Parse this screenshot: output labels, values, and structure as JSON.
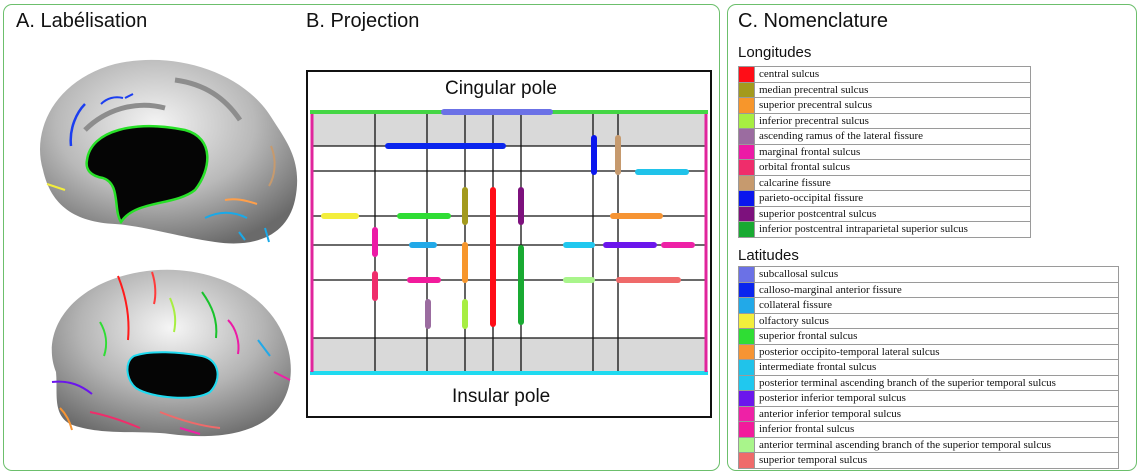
{
  "panels": {
    "a_title": "A. Labélisation",
    "b_title": "B. Projection",
    "c_title": "C. Nomenclature"
  },
  "projection": {
    "top_pole": "Cingular pole",
    "bottom_pole": "Insular pole"
  },
  "nomenclature": {
    "longitudes_heading": "Longitudes",
    "latitudes_heading": "Latitudes",
    "longitudes": [
      {
        "label": "central sulcus",
        "color": "#ff0d17"
      },
      {
        "label": "median precentral sulcus",
        "color": "#a39a1d"
      },
      {
        "label": "superior precentral sulcus",
        "color": "#f7962b"
      },
      {
        "label": "inferior precentral sulcus",
        "color": "#a7ee42"
      },
      {
        "label": "ascending ramus of the lateral fissure",
        "color": "#9b6ca0"
      },
      {
        "label": "marginal frontal sulcus",
        "color": "#ec1aa6"
      },
      {
        "label": "orbital frontal sulcus",
        "color": "#ef2d6b"
      },
      {
        "label": "calcarine fissure",
        "color": "#c69a6e"
      },
      {
        "label": "parieto-occipital fissure",
        "color": "#0a16ee"
      },
      {
        "label": "superior postcentral sulcus",
        "color": "#7d117d"
      },
      {
        "label": "inferior postcentral intraparietal superior sulcus",
        "color": "#19aa32"
      }
    ],
    "latitudes": [
      {
        "label": "subcallosal sulcus",
        "color": "#6b71e6"
      },
      {
        "label": "calloso-marginal anterior fissure",
        "color": "#0a25ee"
      },
      {
        "label": "collateral fissure",
        "color": "#22a9e8"
      },
      {
        "label": "olfactory sulcus",
        "color": "#f3ee3c"
      },
      {
        "label": "superior frontal sulcus",
        "color": "#2fdd34"
      },
      {
        "label": "posterior occipito-temporal lateral sulcus",
        "color": "#f69433"
      },
      {
        "label": "intermediate frontal sulcus",
        "color": "#20c3ea"
      },
      {
        "label": "posterior terminal ascending branch of the superior temporal sulcus",
        "color": "#20c8ef"
      },
      {
        "label": "posterior inferior temporal sulcus",
        "color": "#6b16ec"
      },
      {
        "label": "anterior inferior temporal sulcus",
        "color": "#ee21a6"
      },
      {
        "label": "inferior frontal sulcus",
        "color": "#f21b9c"
      },
      {
        "label": "anterior terminal ascending branch of the superior temporal sulcus",
        "color": "#a9f58b"
      },
      {
        "label": "superior temporal sulcus",
        "color": "#ef6a6a"
      }
    ]
  }
}
